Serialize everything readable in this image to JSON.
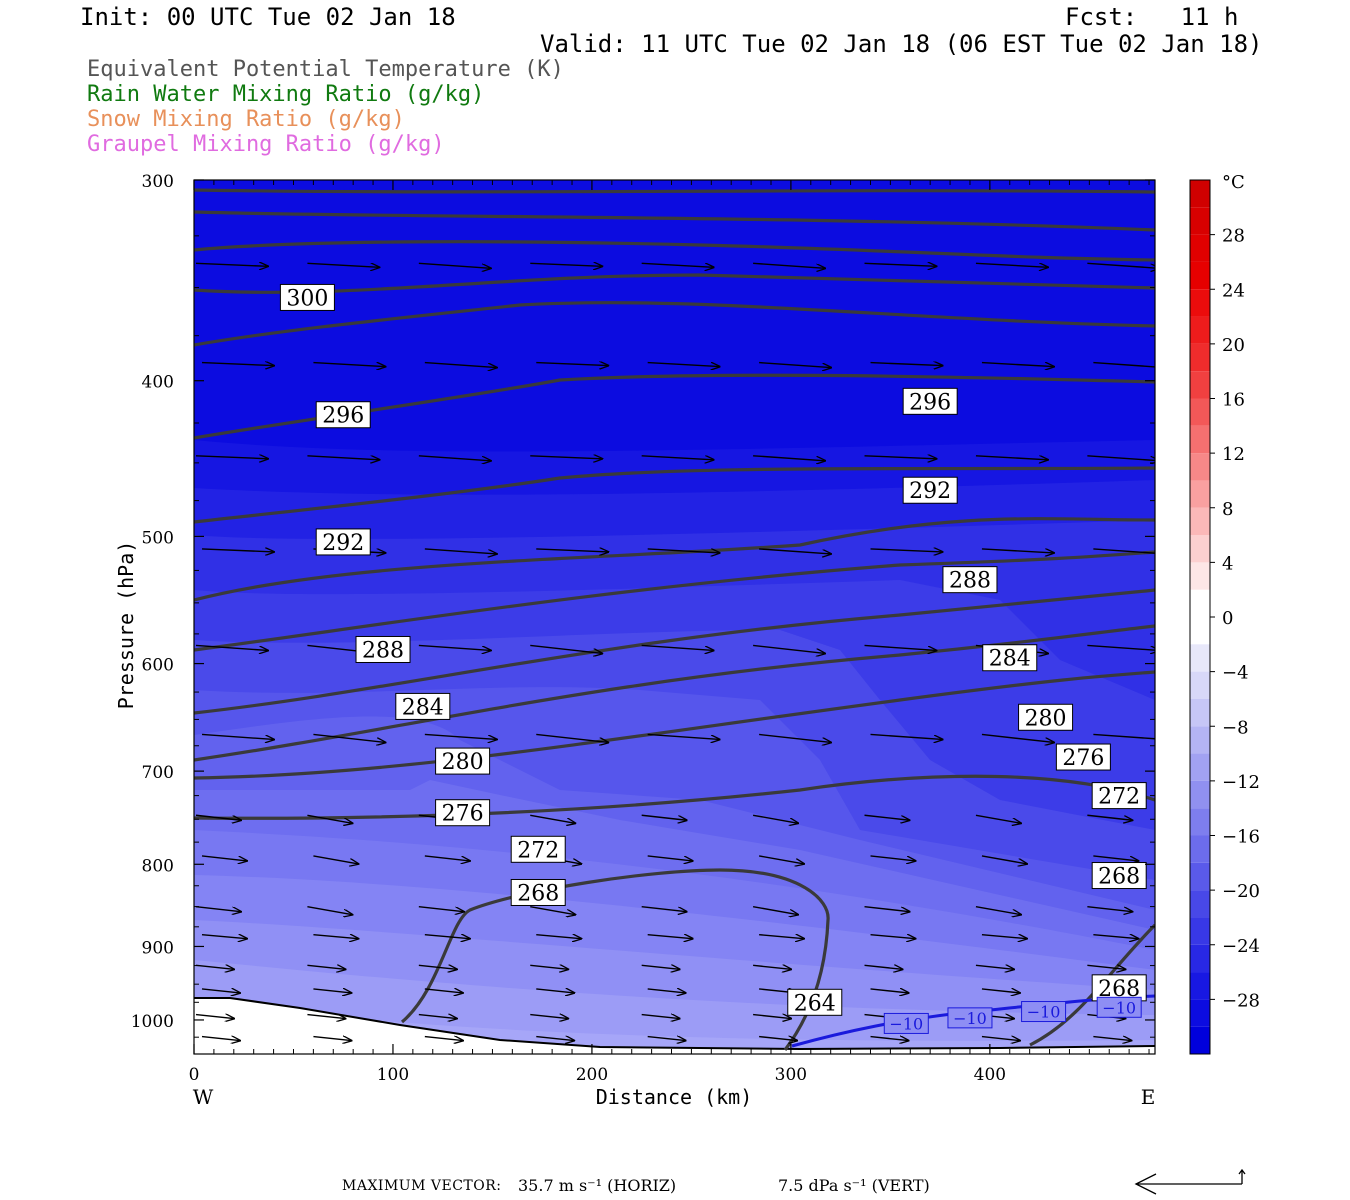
{
  "header": {
    "init": "Init: 00 UTC Tue 02 Jan 18",
    "fcst": "Fcst:   11 h",
    "valid": "Valid: 11 UTC Tue 02 Jan 18 (06 EST Tue 02 Jan 18)"
  },
  "legend": [
    {
      "label": "Equivalent Potential Temperature (K)",
      "color": "#555555"
    },
    {
      "label": "Rain Water Mixing Ratio (g/kg)",
      "color": "#107a10"
    },
    {
      "label": "Snow Mixing Ratio (g/kg)",
      "color": "#e8905a"
    },
    {
      "label": "Graupel Mixing Ratio (g/kg)",
      "color": "#e06be0"
    }
  ],
  "footer": {
    "label": "MAXIMUM VECTOR:",
    "horiz": "35.7 m s⁻¹ (HORIZ)",
    "vert": "7.5 dPa s⁻¹ (VERT)"
  },
  "chart_data": {
    "type": "cross-section",
    "xlabel": "Distance (km)",
    "ylabel": "Pressure (hPa)",
    "x_range": [
      0,
      483
    ],
    "y_range": [
      1050,
      300
    ],
    "y_scale": "log",
    "x_ticks": [
      0,
      100,
      200,
      300,
      400
    ],
    "y_ticks": [
      300,
      400,
      500,
      600,
      700,
      800,
      900,
      1000
    ],
    "left_end_label": "W",
    "right_end_label": "E",
    "colorbar": {
      "unit": "°C",
      "tick_labels": [
        "28",
        "24",
        "20",
        "16",
        "12",
        "8",
        "4",
        "0",
        "−4",
        "−8",
        "−12",
        "−16",
        "−20",
        "−24",
        "−28"
      ],
      "tick_values": [
        28,
        24,
        20,
        16,
        12,
        8,
        4,
        0,
        -4,
        -8,
        -12,
        -16,
        -20,
        -24,
        -28
      ],
      "range": [
        -32,
        32
      ],
      "colors_warm": [
        "#ffffff",
        "#fde6e6",
        "#fcd0d0",
        "#fbb8b8",
        "#f9a0a0",
        "#f78888",
        "#f57070",
        "#f35858",
        "#f14040",
        "#ef2c2c",
        "#ed1c1c",
        "#eb0c0c",
        "#e60000",
        "#e00000",
        "#d80000",
        "#d00000"
      ],
      "colors_cold": [
        "#ffffff",
        "#e8e8fa",
        "#d8d8f8",
        "#c6c6f6",
        "#b4b4f4",
        "#a2a2f2",
        "#9090f0",
        "#7e7eee",
        "#6c6cec",
        "#5a5aea",
        "#4848e8",
        "#3838e6",
        "#2828e4",
        "#1818e2",
        "#0c0ce0",
        "#0000dc"
      ]
    },
    "theta_e_labels": [
      {
        "text": "300",
        "x": 57,
        "p": 355
      },
      {
        "text": "296",
        "x": 75,
        "p": 420
      },
      {
        "text": "296",
        "x": 370,
        "p": 412
      },
      {
        "text": "292",
        "x": 75,
        "p": 504
      },
      {
        "text": "292",
        "x": 370,
        "p": 468
      },
      {
        "text": "288",
        "x": 95,
        "p": 588
      },
      {
        "text": "288",
        "x": 390,
        "p": 532
      },
      {
        "text": "284",
        "x": 115,
        "p": 638
      },
      {
        "text": "284",
        "x": 410,
        "p": 595
      },
      {
        "text": "280",
        "x": 135,
        "p": 690
      },
      {
        "text": "280",
        "x": 428,
        "p": 648
      },
      {
        "text": "276",
        "x": 135,
        "p": 743
      },
      {
        "text": "276",
        "x": 447,
        "p": 686
      },
      {
        "text": "272",
        "x": 173,
        "p": 783
      },
      {
        "text": "272",
        "x": 465,
        "p": 725
      },
      {
        "text": "268",
        "x": 173,
        "p": 833
      },
      {
        "text": "268",
        "x": 465,
        "p": 813
      },
      {
        "text": "264",
        "x": 312,
        "p": 975
      },
      {
        "text": "268",
        "x": 465,
        "p": 955
      }
    ],
    "temperature_contour_labels": [
      {
        "text": "−10",
        "x": 358,
        "p": 1005
      },
      {
        "text": "−10",
        "x": 390,
        "p": 997
      },
      {
        "text": "−10",
        "x": 427,
        "p": 988
      },
      {
        "text": "−10",
        "x": 465,
        "p": 982
      }
    ],
    "max_vector": {
      "horiz_m_s": 35.7,
      "vert_dpa_s": 7.5
    }
  }
}
